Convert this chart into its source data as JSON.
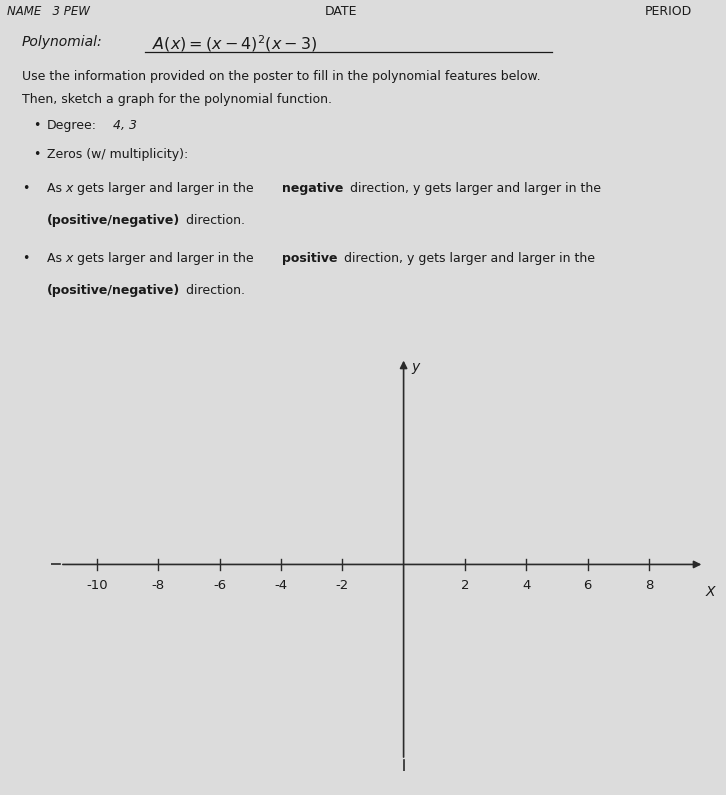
{
  "background_color": "#dcdcdc",
  "text_color": "#1a1a1a",
  "axis_color": "#2a2a2a",
  "header_date": "DATE",
  "header_period": "PERIOD",
  "polynomial_label": "Polynomial:",
  "polynomial_formula": "$A(x) = (x-4)^2(x-3)$",
  "instruction1": "Use the information provided on the poster to fill in the polynomial features below.",
  "instruction2": "Then, sketch a graph for the polynomial function.",
  "degree_label": "Degree:",
  "degree_value": "4, 3",
  "zeros_label": "Zeros (w/ multiplicity):",
  "x_ticks": [
    -10,
    -8,
    -6,
    -4,
    -2,
    2,
    4,
    6,
    8
  ],
  "x_label": "X",
  "y_label": "y",
  "x_min": -11.5,
  "x_max": 9.8,
  "y_min": -5.5,
  "y_max": 5.5,
  "tick_height": 0.15,
  "font_size_body": 9.0,
  "font_size_axis_label": 10.0,
  "font_size_tick": 9.5
}
